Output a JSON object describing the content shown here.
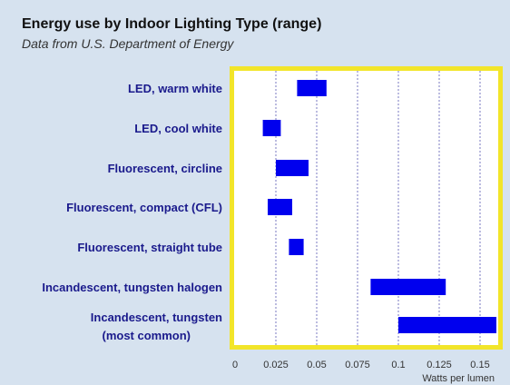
{
  "chart_data": {
    "type": "bar",
    "title": "Energy use by Indoor Lighting Type (range)",
    "subtitle": "Data from U.S. Department of Energy",
    "xlabel": "Watts per lumen",
    "ylabel": "",
    "xlim": [
      0,
      0.16
    ],
    "x_ticks": [
      "0",
      "0.025",
      "0.05",
      "0.075",
      "0.1",
      "0.125",
      "0.15"
    ],
    "grid": true,
    "categories": [
      "LED, warm white",
      "LED, cool white",
      "Fluorescent, circline",
      "Fluorescent, compact (CFL)",
      "Fluorescent,  straight tube",
      "Incandescent, tungsten halogen",
      "Incandescent, tungsten (most common)"
    ],
    "series": [
      {
        "ranges": [
          [
            0.038,
            0.056
          ],
          [
            0.017,
            0.028
          ],
          [
            0.025,
            0.045
          ],
          [
            0.02,
            0.035
          ],
          [
            0.033,
            0.042
          ],
          [
            0.083,
            0.129
          ],
          [
            0.1,
            0.16
          ]
        ]
      }
    ],
    "colors": {
      "bar": "#0000ee",
      "frame": "#f2e52a",
      "plot_bg": "#ffffff",
      "grid": "#7a7ac0",
      "label": "#1a1a8c",
      "tick": "#333333"
    }
  }
}
